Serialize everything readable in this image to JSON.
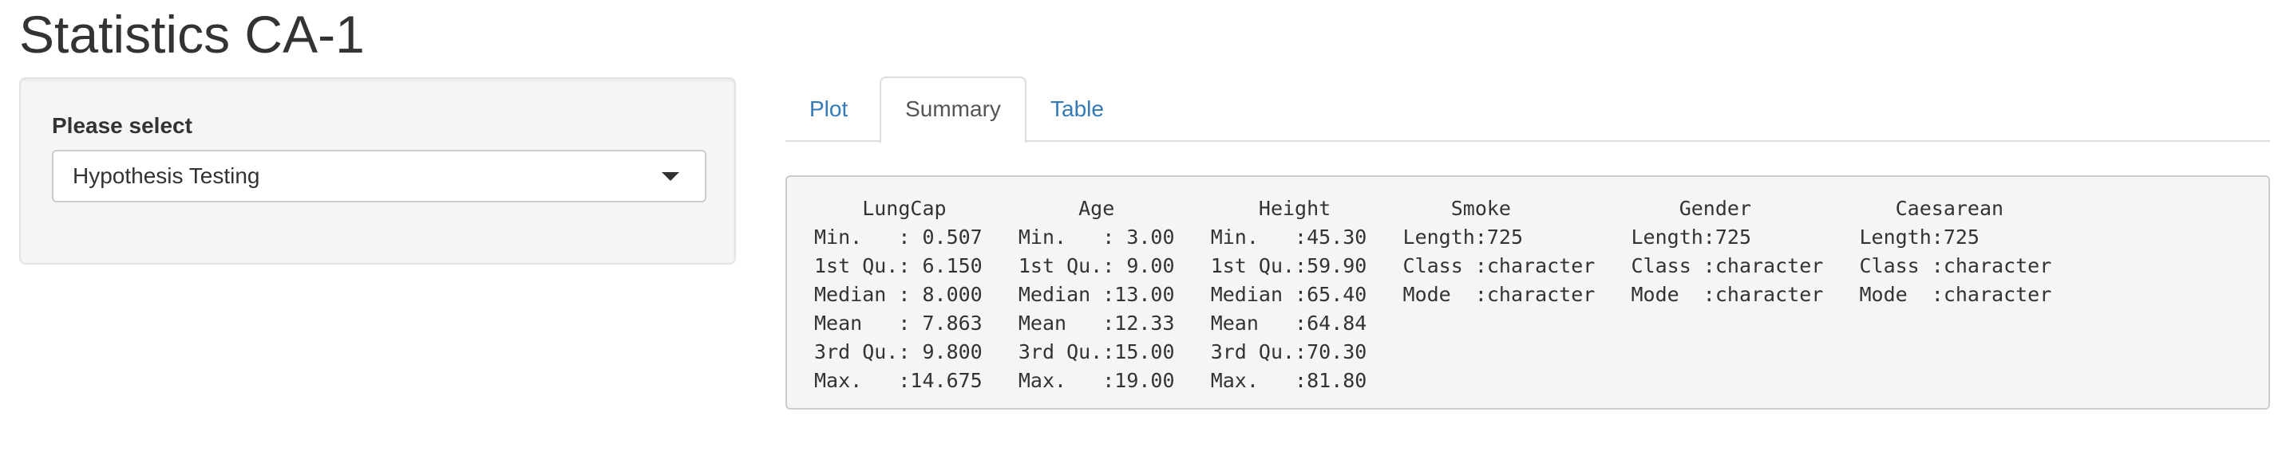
{
  "app": {
    "title": "Statistics CA-1"
  },
  "sidebar": {
    "select_label": "Please select",
    "select_value": "Hypothesis Testing",
    "caret_icon": "caret-down-icon"
  },
  "tabs": [
    {
      "label": "Plot",
      "active": false
    },
    {
      "label": "Summary",
      "active": true
    },
    {
      "label": "Table",
      "active": false
    }
  ],
  "summary": {
    "lines": [
      "    LungCap           Age            Height          Smoke              Gender            Caesarean     ",
      "Min.   : 0.507   Min.   : 3.00   Min.   :45.30   Length:725         Length:725         Length:725        ",
      "1st Qu.: 6.150   1st Qu.: 9.00   1st Qu.:59.90   Class :character   Class :character   Class :character  ",
      "Median : 8.000   Median :13.00   Median :65.40   Mode  :character   Mode  :character   Mode  :character  ",
      "Mean   : 7.863   Mean   :12.33   Mean   :64.84                                                           ",
      "3rd Qu.: 9.800   3rd Qu.:15.00   3rd Qu.:70.30                                                           ",
      "Max.   :14.675   Max.   :19.00   Max.   :81.80                                                           "
    ]
  },
  "colors": {
    "link": "#337ab7",
    "text": "#333333",
    "panel_bg": "#f5f5f5"
  }
}
